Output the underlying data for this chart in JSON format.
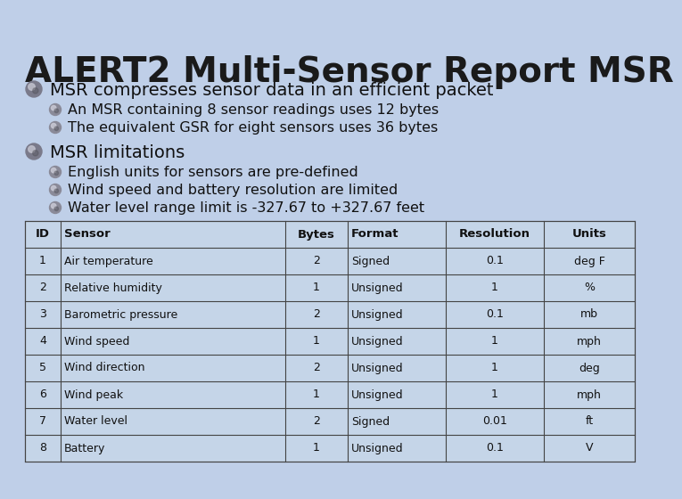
{
  "title": "ALERT2 Multi-Sensor Report MSR",
  "bg_color": "#bfcfe8",
  "title_color": "#1a1a1a",
  "bullet1_main": "MSR compresses sensor data in an efficient packet",
  "bullet1_sub": [
    "An MSR containing 8 sensor readings uses 12 bytes",
    "The equivalent GSR for eight sensors uses 36 bytes"
  ],
  "bullet2_main": "MSR limitations",
  "bullet2_sub": [
    "English units for sensors are pre-defined",
    "Wind speed and battery resolution are limited",
    "Water level range limit is -327.67 to +327.67 feet"
  ],
  "table_headers": [
    "ID",
    "Sensor",
    "Bytes",
    "Format",
    "Resolution",
    "Units"
  ],
  "table_data": [
    [
      "1",
      "Air temperature",
      "2",
      "Signed",
      "0.1",
      "deg F"
    ],
    [
      "2",
      "Relative humidity",
      "1",
      "Unsigned",
      "1",
      "%"
    ],
    [
      "3",
      "Barometric pressure",
      "2",
      "Unsigned",
      "0.1",
      "mb"
    ],
    [
      "4",
      "Wind speed",
      "1",
      "Unsigned",
      "1",
      "mph"
    ],
    [
      "5",
      "Wind direction",
      "2",
      "Unsigned",
      "1",
      "deg"
    ],
    [
      "6",
      "Wind peak",
      "1",
      "Unsigned",
      "1",
      "mph"
    ],
    [
      "7",
      "Water level",
      "2",
      "Signed",
      "0.01",
      "ft"
    ],
    [
      "8",
      "Battery",
      "1",
      "Unsigned",
      "0.1",
      "V"
    ]
  ],
  "table_bg": "#c5d5e8",
  "table_header_bg": "#b0c4d8",
  "table_line_color": "#444444",
  "text_dark": "#111111",
  "title_fontsize": 28,
  "main_bullet_fontsize": 14,
  "sub_bullet_fontsize": 11.5,
  "table_header_fontsize": 9.5,
  "table_data_fontsize": 9.0
}
